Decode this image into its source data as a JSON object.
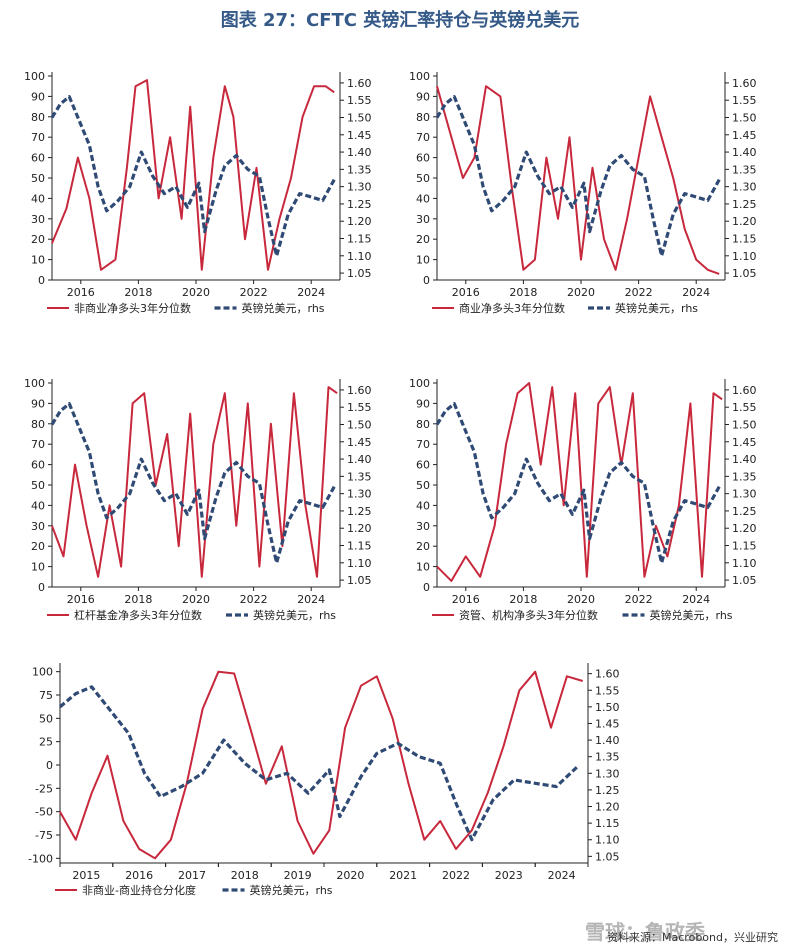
{
  "figure_title": "图表 27：CFTC 英镑汇率持仓与英镑兑美元",
  "footer": "资料来源：Macrobond，兴业研究",
  "watermark": "雪球：鲁政委",
  "colors": {
    "series_red": "#c8283c",
    "series_blue": "#2f4a74"
  },
  "chart_data": [
    {
      "type": "line",
      "panel": "top-left",
      "x_range": [
        2015,
        2025
      ],
      "x_ticks": [
        "2016",
        "2018",
        "2020",
        "2022",
        "2024"
      ],
      "ylim_left": [
        0,
        100
      ],
      "yticks_left": [
        "0",
        "10",
        "20",
        "30",
        "40",
        "50",
        "60",
        "70",
        "80",
        "90",
        "100"
      ],
      "ylim_right": [
        1.03,
        1.62
      ],
      "yticks_right": [
        "1.05",
        "1.10",
        "1.15",
        "1.20",
        "1.25",
        "1.30",
        "1.35",
        "1.40",
        "1.45",
        "1.50",
        "1.55",
        "1.60"
      ],
      "series": [
        {
          "name": "非商业净多头3年分位数",
          "axis": "left",
          "x": [
            2015,
            2015.5,
            2015.9,
            2016.3,
            2016.7,
            2017.2,
            2017.6,
            2017.9,
            2018.3,
            2018.7,
            2019.1,
            2019.5,
            2019.8,
            2020.2,
            2020.6,
            2021.0,
            2021.3,
            2021.7,
            2022.1,
            2022.5,
            2022.9,
            2023.3,
            2023.7,
            2024.1,
            2024.5,
            2024.8
          ],
          "y": [
            18,
            35,
            60,
            40,
            5,
            10,
            55,
            95,
            98,
            40,
            70,
            30,
            85,
            5,
            60,
            95,
            80,
            20,
            55,
            5,
            30,
            50,
            80,
            95,
            95,
            92
          ]
        },
        {
          "name": "英镑兑美元，rhs",
          "axis": "right",
          "x": [
            2015,
            2015.3,
            2015.6,
            2015.9,
            2016.3,
            2016.6,
            2016.9,
            2017.3,
            2017.7,
            2018.1,
            2018.5,
            2018.9,
            2019.3,
            2019.7,
            2020.1,
            2020.3,
            2020.7,
            2021.0,
            2021.4,
            2021.8,
            2022.2,
            2022.5,
            2022.8,
            2023.2,
            2023.6,
            2024.0,
            2024.4,
            2024.8
          ],
          "y": [
            1.5,
            1.54,
            1.56,
            1.5,
            1.42,
            1.3,
            1.23,
            1.26,
            1.3,
            1.4,
            1.33,
            1.28,
            1.3,
            1.24,
            1.31,
            1.17,
            1.29,
            1.36,
            1.39,
            1.35,
            1.33,
            1.21,
            1.1,
            1.22,
            1.28,
            1.27,
            1.26,
            1.32
          ]
        }
      ]
    },
    {
      "type": "line",
      "panel": "top-right",
      "x_range": [
        2015,
        2025
      ],
      "x_ticks": [
        "2016",
        "2018",
        "2020",
        "2022",
        "2024"
      ],
      "ylim_left": [
        0,
        100
      ],
      "yticks_left": [
        "0",
        "10",
        "20",
        "30",
        "40",
        "50",
        "60",
        "70",
        "80",
        "90",
        "100"
      ],
      "ylim_right": [
        1.03,
        1.62
      ],
      "yticks_right": [
        "1.05",
        "1.10",
        "1.15",
        "1.20",
        "1.25",
        "1.30",
        "1.35",
        "1.40",
        "1.45",
        "1.50",
        "1.55",
        "1.60"
      ],
      "series": [
        {
          "name": "商业净多头3年分位数",
          "axis": "left",
          "x": [
            2015,
            2015.4,
            2015.9,
            2016.3,
            2016.7,
            2017.2,
            2017.6,
            2018.0,
            2018.4,
            2018.8,
            2019.2,
            2019.6,
            2020.0,
            2020.4,
            2020.8,
            2021.2,
            2021.6,
            2022.0,
            2022.4,
            2022.8,
            2023.2,
            2023.6,
            2024.0,
            2024.4,
            2024.8
          ],
          "y": [
            95,
            75,
            50,
            60,
            95,
            90,
            45,
            5,
            10,
            60,
            30,
            70,
            10,
            55,
            20,
            5,
            30,
            60,
            90,
            70,
            50,
            25,
            10,
            5,
            3
          ]
        },
        {
          "name": "英镑兑美元，rhs",
          "axis": "right",
          "x": [
            2015,
            2015.3,
            2015.6,
            2015.9,
            2016.3,
            2016.6,
            2016.9,
            2017.3,
            2017.7,
            2018.1,
            2018.5,
            2018.9,
            2019.3,
            2019.7,
            2020.1,
            2020.3,
            2020.7,
            2021.0,
            2021.4,
            2021.8,
            2022.2,
            2022.5,
            2022.8,
            2023.2,
            2023.6,
            2024.0,
            2024.4,
            2024.8
          ],
          "y": [
            1.5,
            1.54,
            1.56,
            1.5,
            1.42,
            1.3,
            1.23,
            1.26,
            1.3,
            1.4,
            1.33,
            1.28,
            1.3,
            1.24,
            1.31,
            1.17,
            1.29,
            1.36,
            1.39,
            1.35,
            1.33,
            1.21,
            1.1,
            1.22,
            1.28,
            1.27,
            1.26,
            1.32
          ]
        }
      ]
    },
    {
      "type": "line",
      "panel": "middle-left",
      "x_range": [
        2015,
        2025
      ],
      "x_ticks": [
        "2016",
        "2018",
        "2020",
        "2022",
        "2024"
      ],
      "ylim_left": [
        0,
        100
      ],
      "yticks_left": [
        "0",
        "10",
        "20",
        "30",
        "40",
        "50",
        "60",
        "70",
        "80",
        "90",
        "100"
      ],
      "ylim_right": [
        1.03,
        1.62
      ],
      "yticks_right": [
        "1.05",
        "1.10",
        "1.15",
        "1.20",
        "1.25",
        "1.30",
        "1.35",
        "1.40",
        "1.45",
        "1.50",
        "1.55",
        "1.60"
      ],
      "series": [
        {
          "name": "杠杆基金净多头3年分位数",
          "axis": "left",
          "x": [
            2015,
            2015.4,
            2015.8,
            2016.2,
            2016.6,
            2017.0,
            2017.4,
            2017.8,
            2018.2,
            2018.6,
            2019.0,
            2019.4,
            2019.8,
            2020.2,
            2020.6,
            2021.0,
            2021.4,
            2021.8,
            2022.2,
            2022.6,
            2023.0,
            2023.4,
            2023.8,
            2024.2,
            2024.6,
            2024.9
          ],
          "y": [
            30,
            15,
            60,
            30,
            5,
            40,
            10,
            90,
            95,
            50,
            75,
            20,
            85,
            5,
            70,
            95,
            30,
            90,
            10,
            80,
            20,
            95,
            40,
            5,
            98,
            95
          ]
        },
        {
          "name": "英镑兑美元，rhs",
          "axis": "right",
          "x": [
            2015,
            2015.3,
            2015.6,
            2015.9,
            2016.3,
            2016.6,
            2016.9,
            2017.3,
            2017.7,
            2018.1,
            2018.5,
            2018.9,
            2019.3,
            2019.7,
            2020.1,
            2020.3,
            2020.7,
            2021.0,
            2021.4,
            2021.8,
            2022.2,
            2022.5,
            2022.8,
            2023.2,
            2023.6,
            2024.0,
            2024.4,
            2024.8
          ],
          "y": [
            1.5,
            1.54,
            1.56,
            1.5,
            1.42,
            1.3,
            1.23,
            1.26,
            1.3,
            1.4,
            1.33,
            1.28,
            1.3,
            1.24,
            1.31,
            1.17,
            1.29,
            1.36,
            1.39,
            1.35,
            1.33,
            1.21,
            1.1,
            1.22,
            1.28,
            1.27,
            1.26,
            1.32
          ]
        }
      ]
    },
    {
      "type": "line",
      "panel": "middle-right",
      "x_range": [
        2015,
        2025
      ],
      "x_ticks": [
        "2016",
        "2018",
        "2020",
        "2022",
        "2024"
      ],
      "ylim_left": [
        0,
        100
      ],
      "yticks_left": [
        "0",
        "10",
        "20",
        "30",
        "40",
        "50",
        "60",
        "70",
        "80",
        "90",
        "100"
      ],
      "ylim_right": [
        1.03,
        1.62
      ],
      "yticks_right": [
        "1.05",
        "1.10",
        "1.15",
        "1.20",
        "1.25",
        "1.30",
        "1.35",
        "1.40",
        "1.45",
        "1.50",
        "1.55",
        "1.60"
      ],
      "series": [
        {
          "name": "资管、机构净多头3年分位数",
          "axis": "left",
          "x": [
            2015,
            2015.5,
            2016.0,
            2016.5,
            2017.0,
            2017.4,
            2017.8,
            2018.2,
            2018.6,
            2019.0,
            2019.4,
            2019.8,
            2020.2,
            2020.6,
            2021.0,
            2021.4,
            2021.8,
            2022.2,
            2022.6,
            2023.0,
            2023.4,
            2023.8,
            2024.2,
            2024.6,
            2024.9
          ],
          "y": [
            10,
            3,
            15,
            5,
            30,
            70,
            95,
            100,
            60,
            98,
            40,
            95,
            5,
            90,
            98,
            60,
            95,
            5,
            30,
            15,
            40,
            90,
            5,
            95,
            92
          ]
        },
        {
          "name": "英镑兑美元，rhs",
          "axis": "right",
          "x": [
            2015,
            2015.3,
            2015.6,
            2015.9,
            2016.3,
            2016.6,
            2016.9,
            2017.3,
            2017.7,
            2018.1,
            2018.5,
            2018.9,
            2019.3,
            2019.7,
            2020.1,
            2020.3,
            2020.7,
            2021.0,
            2021.4,
            2021.8,
            2022.2,
            2022.5,
            2022.8,
            2023.2,
            2023.6,
            2024.0,
            2024.4,
            2024.8
          ],
          "y": [
            1.5,
            1.54,
            1.56,
            1.5,
            1.42,
            1.3,
            1.23,
            1.26,
            1.3,
            1.4,
            1.33,
            1.28,
            1.3,
            1.24,
            1.31,
            1.17,
            1.29,
            1.36,
            1.39,
            1.35,
            1.33,
            1.21,
            1.1,
            1.22,
            1.28,
            1.27,
            1.26,
            1.32
          ]
        }
      ]
    },
    {
      "type": "line",
      "panel": "bottom",
      "x_range": [
        2015,
        2025
      ],
      "x_ticks": [
        "2015",
        "2016",
        "2017",
        "2018",
        "2019",
        "2020",
        "2021",
        "2022",
        "2023",
        "2024"
      ],
      "x_tick_style": "centered",
      "ylim_left": [
        -105,
        105
      ],
      "yticks_left": [
        "-100",
        "-75",
        "-50",
        "-25",
        "0",
        "25",
        "50",
        "75",
        "100"
      ],
      "ylim_right": [
        1.03,
        1.62
      ],
      "yticks_right": [
        "1.05",
        "1.10",
        "1.15",
        "1.20",
        "1.25",
        "1.30",
        "1.35",
        "1.40",
        "1.45",
        "1.50",
        "1.55",
        "1.60"
      ],
      "series": [
        {
          "name": "非商业-商业持仓分化度",
          "axis": "left",
          "x": [
            2015,
            2015.3,
            2015.6,
            2015.9,
            2016.2,
            2016.5,
            2016.8,
            2017.1,
            2017.4,
            2017.7,
            2018.0,
            2018.3,
            2018.6,
            2018.9,
            2019.2,
            2019.5,
            2019.8,
            2020.1,
            2020.4,
            2020.7,
            2021.0,
            2021.3,
            2021.6,
            2021.9,
            2022.2,
            2022.5,
            2022.8,
            2023.1,
            2023.4,
            2023.7,
            2024.0,
            2024.3,
            2024.6,
            2024.9
          ],
          "y": [
            -50,
            -80,
            -30,
            10,
            -60,
            -90,
            -100,
            -80,
            -20,
            60,
            100,
            98,
            40,
            -20,
            20,
            -60,
            -95,
            -70,
            40,
            85,
            95,
            50,
            -20,
            -80,
            -60,
            -90,
            -70,
            -30,
            20,
            80,
            100,
            40,
            95,
            90
          ]
        },
        {
          "name": "英镑兑美元，rhs",
          "axis": "right",
          "x": [
            2015,
            2015.3,
            2015.6,
            2015.9,
            2016.3,
            2016.6,
            2016.9,
            2017.3,
            2017.7,
            2018.1,
            2018.5,
            2018.9,
            2019.3,
            2019.7,
            2020.1,
            2020.3,
            2020.7,
            2021.0,
            2021.4,
            2021.8,
            2022.2,
            2022.5,
            2022.8,
            2023.2,
            2023.6,
            2024.0,
            2024.4,
            2024.8
          ],
          "y": [
            1.5,
            1.54,
            1.56,
            1.5,
            1.42,
            1.3,
            1.23,
            1.26,
            1.3,
            1.4,
            1.33,
            1.28,
            1.3,
            1.24,
            1.31,
            1.17,
            1.29,
            1.36,
            1.39,
            1.35,
            1.33,
            1.21,
            1.1,
            1.22,
            1.28,
            1.27,
            1.26,
            1.32
          ]
        }
      ]
    }
  ]
}
